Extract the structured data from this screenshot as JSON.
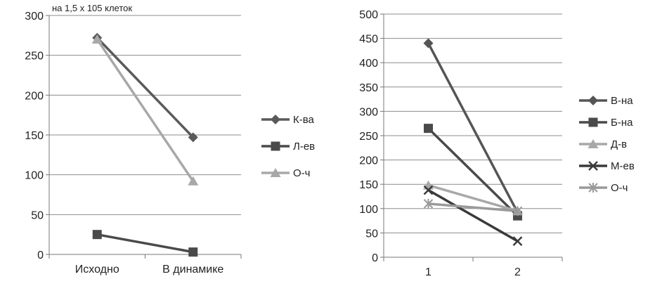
{
  "chart_data": [
    {
      "type": "line",
      "annotation": "на 1,5 х 105 клеток",
      "categories": [
        "Исходно",
        "В динамике"
      ],
      "ylim": [
        0,
        300
      ],
      "yticks": [
        0,
        50,
        100,
        150,
        200,
        250,
        300
      ],
      "grid": true,
      "legend_position": "right",
      "series": [
        {
          "name": "К-ва",
          "values": [
            272,
            147
          ],
          "color": "#5a5a5a",
          "marker": "diamond"
        },
        {
          "name": "Л-ев",
          "values": [
            25,
            3
          ],
          "color": "#4a4a4a",
          "marker": "square"
        },
        {
          "name": "О-ч",
          "values": [
            270,
            92
          ],
          "color": "#a8a8a8",
          "marker": "triangle"
        }
      ]
    },
    {
      "type": "line",
      "categories": [
        "1",
        "2"
      ],
      "ylim": [
        0,
        500
      ],
      "yticks": [
        0,
        50,
        100,
        150,
        200,
        250,
        300,
        350,
        400,
        450,
        500
      ],
      "grid": true,
      "legend_position": "right",
      "series": [
        {
          "name": "В-на",
          "values": [
            440,
            92
          ],
          "color": "#555555",
          "marker": "diamond"
        },
        {
          "name": "Б-на",
          "values": [
            265,
            85
          ],
          "color": "#4a4a4a",
          "marker": "square"
        },
        {
          "name": "Д-в",
          "values": [
            148,
            95
          ],
          "color": "#a8a8a8",
          "marker": "triangle"
        },
        {
          "name": "М-ев",
          "values": [
            138,
            33
          ],
          "color": "#3a3a3a",
          "marker": "x"
        },
        {
          "name": "О-ч",
          "values": [
            110,
            95
          ],
          "color": "#9a9a9a",
          "marker": "star"
        }
      ]
    }
  ]
}
